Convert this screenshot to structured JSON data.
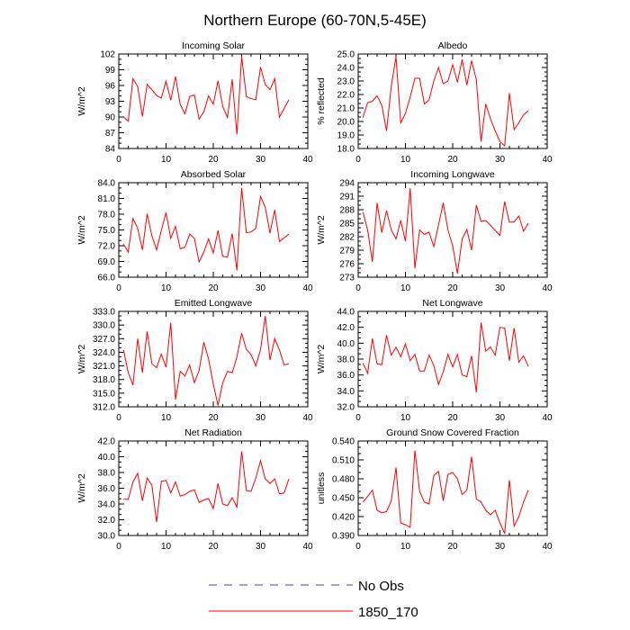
{
  "figure": {
    "title": "Northern Europe (60-70N,5-45E)"
  },
  "legend": {
    "entries": [
      {
        "label": "No Obs",
        "color": "#4444aa",
        "style": "dashed"
      },
      {
        "label": "1850_170",
        "color": "#ff0000",
        "style": "solid"
      }
    ]
  },
  "chart_data": [
    {
      "type": "line",
      "title": "Incoming Solar",
      "ylabel": "W/m^2",
      "xlim": [
        0,
        40
      ],
      "xticks": [
        0,
        10,
        20,
        30,
        40
      ],
      "ylim": [
        84,
        102
      ],
      "yticks": [
        84,
        87,
        90,
        93,
        96,
        99,
        102
      ],
      "ytick_labels": [
        "84",
        "87",
        "90",
        "93",
        "96",
        "99",
        "102"
      ],
      "series": [
        {
          "name": "1850_170",
          "color": "#ff0000",
          "x": [
            1,
            2,
            3,
            4,
            5,
            6,
            7,
            8,
            9,
            10,
            11,
            12,
            13,
            14,
            15,
            16,
            17,
            18,
            19,
            20,
            21,
            22,
            23,
            24,
            25,
            26,
            27,
            28,
            29,
            30,
            31,
            32,
            33,
            34,
            35,
            36
          ],
          "values": [
            90.0,
            89.2,
            97.3,
            95.8,
            90.1,
            96.2,
            95.2,
            94.1,
            93.6,
            96.8,
            93.2,
            97.7,
            92.4,
            90.6,
            93.9,
            94.2,
            89.6,
            91.0,
            94.0,
            92.4,
            96.9,
            92.0,
            89.9,
            97.2,
            86.7,
            101.5,
            93.9,
            93.5,
            93.3,
            99.5,
            96.2,
            95.2,
            97.3,
            90.0,
            91.6,
            93.3
          ]
        }
      ]
    },
    {
      "type": "line",
      "title": "Albedo",
      "ylabel": "% reflected",
      "xlim": [
        0,
        40
      ],
      "xticks": [
        0,
        10,
        20,
        30,
        40
      ],
      "ylim": [
        18,
        25
      ],
      "yticks": [
        18,
        19,
        20,
        21,
        22,
        23,
        24,
        25
      ],
      "ytick_labels": [
        "18.0",
        "19.0",
        "20.0",
        "21.0",
        "22.0",
        "23.0",
        "24.0",
        "25.0"
      ],
      "series": [
        {
          "name": "1850_170",
          "color": "#ff0000",
          "x": [
            1,
            2,
            3,
            4,
            5,
            6,
            7,
            8,
            9,
            10,
            11,
            12,
            13,
            14,
            15,
            16,
            17,
            18,
            19,
            20,
            21,
            22,
            23,
            24,
            25,
            26,
            27,
            28,
            29,
            30,
            31,
            32,
            33,
            34,
            35,
            36
          ],
          "values": [
            20.3,
            21.4,
            21.5,
            21.9,
            21.2,
            19.3,
            22.6,
            24.8,
            19.9,
            20.6,
            21.8,
            23.2,
            23.2,
            21.3,
            21.6,
            23.0,
            24.0,
            22.8,
            23.0,
            24.2,
            22.9,
            24.6,
            22.7,
            24.5,
            23.1,
            18.5,
            21.3,
            20.2,
            19.3,
            18.5,
            18.2,
            22.1,
            19.4,
            19.9,
            20.5,
            20.8
          ]
        }
      ]
    },
    {
      "type": "line",
      "title": "Absorbed Solar",
      "ylabel": "W/m^2",
      "xlim": [
        0,
        40
      ],
      "xticks": [
        0,
        10,
        20,
        30,
        40
      ],
      "ylim": [
        66,
        84
      ],
      "yticks": [
        66,
        69,
        72,
        75,
        78,
        81,
        84
      ],
      "ytick_labels": [
        "66.0",
        "69.0",
        "72.0",
        "75.0",
        "78.0",
        "81.0",
        "84.0"
      ],
      "series": [
        {
          "name": "1850_170",
          "color": "#ff0000",
          "x": [
            1,
            2,
            3,
            4,
            5,
            6,
            7,
            8,
            9,
            10,
            11,
            12,
            13,
            14,
            15,
            16,
            17,
            18,
            19,
            20,
            21,
            22,
            23,
            24,
            25,
            26,
            27,
            28,
            29,
            30,
            31,
            32,
            33,
            34,
            35,
            36
          ],
          "values": [
            72.3,
            70.8,
            77.2,
            75.3,
            71.2,
            78.1,
            73.9,
            71.2,
            74.9,
            78.3,
            73.4,
            75.7,
            71.4,
            71.7,
            74.2,
            73.4,
            68.9,
            70.8,
            73.3,
            70.6,
            74.9,
            70.0,
            69.8,
            74.3,
            67.3,
            83.0,
            74.5,
            74.6,
            75.3,
            81.4,
            79.3,
            74.4,
            78.8,
            72.8,
            73.5,
            74.2
          ]
        }
      ]
    },
    {
      "type": "line",
      "title": "Incoming Longwave",
      "ylabel": "W/m^2",
      "xlim": [
        0,
        40
      ],
      "xticks": [
        0,
        10,
        20,
        30,
        40
      ],
      "ylim": [
        273,
        294
      ],
      "yticks": [
        273,
        276,
        279,
        282,
        285,
        288,
        291,
        294
      ],
      "ytick_labels": [
        "273",
        "276",
        "279",
        "282",
        "285",
        "288",
        "291",
        "294"
      ],
      "series": [
        {
          "name": "1850_170",
          "color": "#ff0000",
          "x": [
            1,
            2,
            3,
            4,
            5,
            6,
            7,
            8,
            9,
            10,
            11,
            12,
            13,
            14,
            15,
            16,
            17,
            18,
            19,
            20,
            21,
            22,
            23,
            24,
            25,
            26,
            27,
            28,
            29,
            30,
            31,
            32,
            33,
            34,
            35,
            36
          ],
          "values": [
            287.5,
            283.5,
            276.4,
            289.5,
            282.9,
            287.8,
            283.5,
            281.5,
            285.6,
            281.0,
            292.8,
            275.0,
            283.5,
            282.5,
            283.0,
            279.8,
            284.6,
            289.5,
            283.5,
            280.0,
            273.8,
            281.5,
            283.6,
            279.0,
            289.0,
            285.4,
            285.6,
            284.5,
            283.4,
            282.3,
            289.8,
            285.2,
            285.3,
            286.6,
            283.2,
            285.0
          ]
        }
      ]
    },
    {
      "type": "line",
      "title": "Emitted Longwave",
      "ylabel": "W/m^2",
      "xlim": [
        0,
        40
      ],
      "xticks": [
        0,
        10,
        20,
        30,
        40
      ],
      "ylim": [
        312,
        333
      ],
      "yticks": [
        312,
        315,
        318,
        321,
        324,
        327,
        330,
        333
      ],
      "ytick_labels": [
        "312.0",
        "315.0",
        "318.0",
        "321.0",
        "324.0",
        "327.0",
        "330.0",
        "333.0"
      ],
      "series": [
        {
          "name": "1850_170",
          "color": "#ff0000",
          "x": [
            1,
            2,
            3,
            4,
            5,
            6,
            7,
            8,
            9,
            10,
            11,
            12,
            13,
            14,
            15,
            16,
            17,
            18,
            19,
            20,
            21,
            22,
            23,
            24,
            25,
            26,
            27,
            28,
            29,
            30,
            31,
            32,
            33,
            34,
            35,
            36
          ],
          "values": [
            324.5,
            319.5,
            316.8,
            327.0,
            319.5,
            328.6,
            321.5,
            320.6,
            323.6,
            320.7,
            330.5,
            313.6,
            319.8,
            318.8,
            321.2,
            317.3,
            320.0,
            326.2,
            322.5,
            317.0,
            312.3,
            317.3,
            319.8,
            319.5,
            323.0,
            328.2,
            324.6,
            323.5,
            321.0,
            324.6,
            332.0,
            322.3,
            327.0,
            324.5,
            321.2,
            321.5
          ]
        }
      ]
    },
    {
      "type": "line",
      "title": "Net Longwave",
      "ylabel": "W/m^2",
      "xlim": [
        0,
        40
      ],
      "xticks": [
        0,
        10,
        20,
        30,
        40
      ],
      "ylim": [
        32,
        44
      ],
      "yticks": [
        32,
        34,
        36,
        38,
        40,
        42,
        44
      ],
      "ytick_labels": [
        "32.0",
        "34.0",
        "36.0",
        "38.0",
        "40.0",
        "42.0",
        "44.0"
      ],
      "series": [
        {
          "name": "1850_170",
          "color": "#ff0000",
          "x": [
            1,
            2,
            3,
            4,
            5,
            6,
            7,
            8,
            9,
            10,
            11,
            12,
            13,
            14,
            15,
            16,
            17,
            18,
            19,
            20,
            21,
            22,
            23,
            24,
            25,
            26,
            27,
            28,
            29,
            30,
            31,
            32,
            33,
            34,
            35,
            36
          ],
          "values": [
            37.5,
            36.2,
            40.6,
            37.4,
            37.3,
            41.0,
            38.5,
            39.5,
            38.3,
            39.9,
            37.8,
            38.6,
            36.5,
            36.5,
            38.5,
            37.2,
            34.8,
            36.4,
            38.6,
            37.0,
            38.6,
            36.0,
            35.8,
            38.4,
            33.8,
            42.6,
            39.0,
            39.5,
            38.5,
            42.0,
            41.9,
            37.8,
            41.9,
            37.6,
            38.4,
            37.1
          ]
        }
      ]
    },
    {
      "type": "line",
      "title": "Net Radiation",
      "ylabel": "W/m^2",
      "xlim": [
        0,
        40
      ],
      "xticks": [
        0,
        10,
        20,
        30,
        40
      ],
      "ylim": [
        30,
        42
      ],
      "yticks": [
        30,
        32,
        34,
        36,
        38,
        40,
        42
      ],
      "ytick_labels": [
        "30.0",
        "32.0",
        "34.0",
        "36.0",
        "38.0",
        "40.0",
        "42.0"
      ],
      "series": [
        {
          "name": "1850_170",
          "color": "#ff0000",
          "x": [
            1,
            2,
            3,
            4,
            5,
            6,
            7,
            8,
            9,
            10,
            11,
            12,
            13,
            14,
            15,
            16,
            17,
            18,
            19,
            20,
            21,
            22,
            23,
            24,
            25,
            26,
            27,
            28,
            29,
            30,
            31,
            32,
            33,
            34,
            35,
            36
          ],
          "values": [
            34.6,
            34.6,
            36.8,
            37.9,
            34.4,
            37.3,
            36.4,
            31.7,
            36.9,
            37.0,
            35.4,
            36.8,
            35.0,
            35.2,
            35.6,
            35.8,
            34.2,
            34.5,
            34.7,
            33.4,
            36.6,
            34.0,
            33.8,
            34.8,
            33.6,
            40.7,
            35.7,
            35.6,
            37.3,
            39.5,
            37.2,
            36.6,
            37.2,
            35.3,
            35.4,
            37.2
          ]
        }
      ]
    },
    {
      "type": "line",
      "title": "Ground Snow Covered Fraction",
      "ylabel": "unitless",
      "xlim": [
        0,
        40
      ],
      "xticks": [
        0,
        10,
        20,
        30,
        40
      ],
      "ylim": [
        0.39,
        0.54
      ],
      "yticks": [
        0.39,
        0.42,
        0.45,
        0.48,
        0.51,
        0.54
      ],
      "ytick_labels": [
        "0.390",
        "0.420",
        "0.450",
        "0.480",
        "0.510",
        "0.540"
      ],
      "series": [
        {
          "name": "1850_170",
          "color": "#ff0000",
          "x": [
            1,
            2,
            3,
            4,
            5,
            6,
            7,
            8,
            9,
            10,
            11,
            12,
            13,
            14,
            15,
            16,
            17,
            18,
            19,
            20,
            21,
            22,
            23,
            24,
            25,
            26,
            27,
            28,
            29,
            30,
            31,
            32,
            33,
            34,
            35,
            36
          ],
          "values": [
            0.443,
            0.452,
            0.462,
            0.43,
            0.426,
            0.428,
            0.445,
            0.498,
            0.41,
            0.407,
            0.403,
            0.525,
            0.46,
            0.443,
            0.44,
            0.485,
            0.492,
            0.445,
            0.487,
            0.49,
            0.48,
            0.455,
            0.462,
            0.515,
            0.448,
            0.443,
            0.43,
            0.423,
            0.43,
            0.41,
            0.393,
            0.478,
            0.405,
            0.42,
            0.443,
            0.462
          ]
        }
      ]
    }
  ]
}
